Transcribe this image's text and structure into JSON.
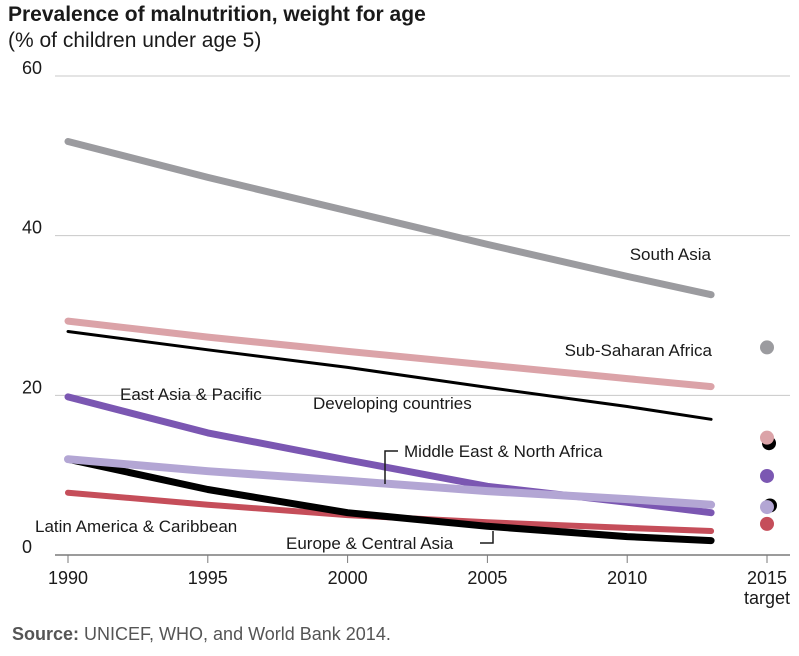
{
  "chart_data": {
    "type": "line",
    "title": "Prevalence of malnutrition, weight for age",
    "subtitle": "(% of children under age 5)",
    "xlabel": "",
    "ylabel": "",
    "xlim": [
      1990,
      2015
    ],
    "ylim": [
      0,
      60
    ],
    "y_ticks": [
      0,
      20,
      40,
      60
    ],
    "x_ticks": [
      "1990",
      "1995",
      "2000",
      "2005",
      "2010",
      "2015"
    ],
    "target_label": "target",
    "grid": true,
    "x": [
      1990,
      1995,
      2000,
      2005,
      2010,
      2013
    ],
    "series": [
      {
        "name": "South Asia",
        "color": "#9b9b9f",
        "values": [
          51.8,
          47.3,
          43.1,
          38.9,
          34.9,
          32.6
        ],
        "target": 26.0
      },
      {
        "name": "Sub-Saharan Africa",
        "color": "#dba3a8",
        "values": [
          29.3,
          27.3,
          25.5,
          23.8,
          22.1,
          21.1
        ],
        "target": 14.7
      },
      {
        "name": "Developing countries",
        "color": "#000000",
        "values": [
          28.0,
          25.7,
          23.5,
          21.0,
          18.6,
          17.0
        ],
        "target": 14.0
      },
      {
        "name": "East Asia & Pacific",
        "color": "#7b57b2",
        "values": [
          19.8,
          15.3,
          11.9,
          8.6,
          6.6,
          5.3
        ],
        "target": 9.9
      },
      {
        "name": "Middle East & North Africa",
        "color": "#b3a6d4",
        "values": [
          12.0,
          10.5,
          9.3,
          8.0,
          7.0,
          6.3
        ],
        "target": 6.0
      },
      {
        "name": "Europe & Central Asia",
        "color": "#000000",
        "values": [
          12.0,
          8.2,
          5.3,
          3.6,
          2.3,
          1.8
        ],
        "target": 6.2
      },
      {
        "name": "Latin America & Caribbean",
        "color": "#c54e5a",
        "values": [
          7.8,
          6.3,
          5.0,
          4.1,
          3.4,
          3.0
        ],
        "target": 3.9
      }
    ]
  },
  "source": {
    "label": "Source:",
    "text": "UNICEF, WHO, and World Bank 2014."
  }
}
